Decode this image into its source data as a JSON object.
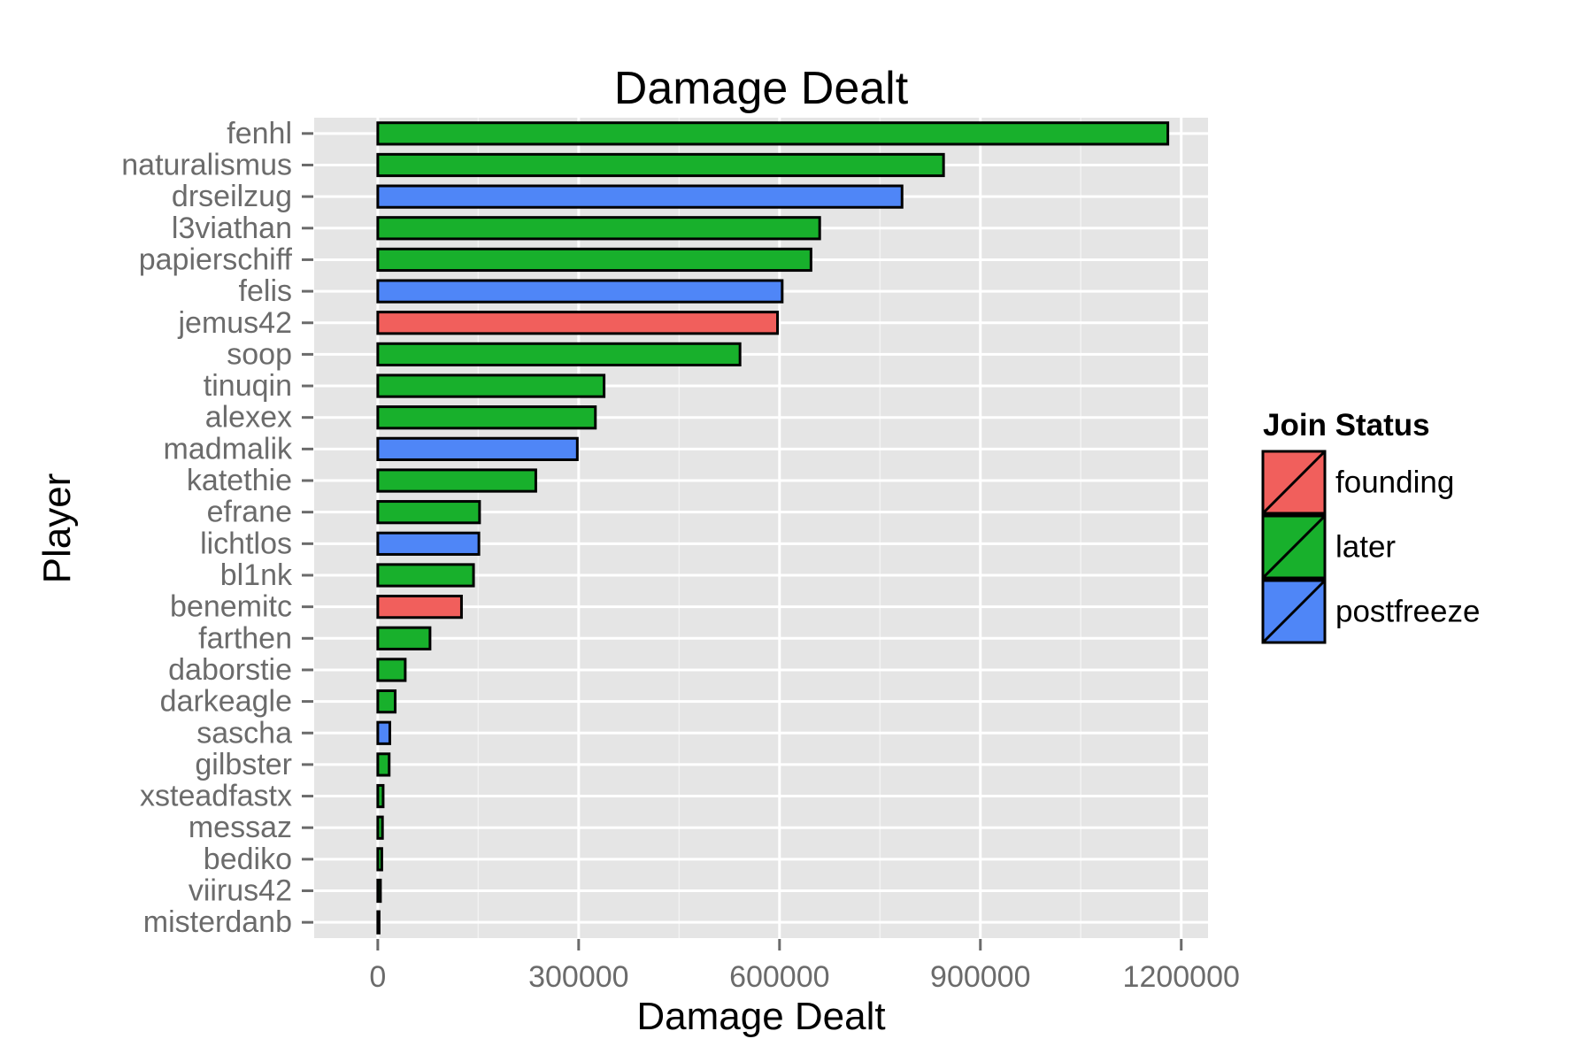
{
  "chart_data": {
    "type": "bar",
    "orientation": "horizontal",
    "title": "Damage Dealt",
    "xlabel": "Damage Dealt",
    "ylabel": "Player",
    "xlim": [
      -95000,
      1240000
    ],
    "xticks": [
      0,
      300000,
      600000,
      900000,
      1200000
    ],
    "xtick_labels": [
      "0",
      "300000",
      "600000",
      "900000",
      "1200000"
    ],
    "grid": true,
    "legend": {
      "title": "Join Status",
      "placement": "right",
      "entries": [
        {
          "name": "founding",
          "color": "#F15F5C"
        },
        {
          "name": "later",
          "color": "#18B02C"
        },
        {
          "name": "postfreeze",
          "color": "#4F86F7"
        }
      ]
    },
    "categories": [
      "fenhl",
      "naturalismus",
      "drseilzug",
      "l3viathan",
      "papierschiff",
      "felis",
      "jemus42",
      "soop",
      "tinuqin",
      "alexex",
      "madmalik",
      "katethie",
      "efrane",
      "lichtlos",
      "bl1nk",
      "benemitc",
      "farthen",
      "daborstie",
      "darkeagle",
      "sascha",
      "gilbster",
      "xsteadfastx",
      "messaz",
      "bediko",
      "viirus42",
      "misterdanb"
    ],
    "values": [
      1180000,
      845000,
      783000,
      660000,
      647000,
      604000,
      597000,
      541000,
      338000,
      325000,
      298000,
      236000,
      152000,
      151000,
      143000,
      125000,
      78000,
      41000,
      26000,
      18000,
      17000,
      8000,
      7000,
      6000,
      4000,
      2000
    ],
    "groups": [
      "later",
      "later",
      "postfreeze",
      "later",
      "later",
      "postfreeze",
      "founding",
      "later",
      "later",
      "later",
      "postfreeze",
      "later",
      "later",
      "postfreeze",
      "later",
      "founding",
      "later",
      "later",
      "later",
      "postfreeze",
      "later",
      "later",
      "later",
      "later",
      "later",
      "later"
    ]
  }
}
